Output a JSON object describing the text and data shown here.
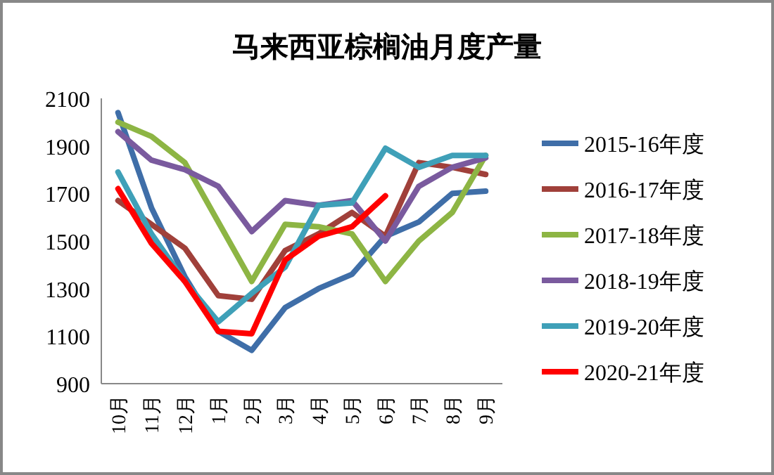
{
  "chart_data": {
    "type": "line",
    "title": "马来西亚棕榈油月度产量",
    "categories": [
      "10月",
      "11月",
      "12月",
      "1月",
      "2月",
      "3月",
      "4月",
      "5月",
      "6月",
      "7月",
      "8月",
      "9月"
    ],
    "ylim": [
      900,
      2100
    ],
    "yticks": [
      900,
      1100,
      1300,
      1500,
      1700,
      1900,
      2100
    ],
    "grid": false,
    "legend": "right",
    "marker": "none",
    "series": [
      {
        "name": "2015-16年度",
        "color": "#3f6ea8",
        "values": [
          2040,
          1640,
          1350,
          1120,
          1040,
          1220,
          1300,
          1360,
          1520,
          1580,
          1700,
          1710
        ]
      },
      {
        "name": "2016-17年度",
        "color": "#a0403a",
        "values": [
          1670,
          1570,
          1470,
          1270,
          1255,
          1460,
          1530,
          1620,
          1520,
          1830,
          1810,
          1780
        ]
      },
      {
        "name": "2017-18年度",
        "color": "#8db544",
        "values": [
          2000,
          1940,
          1830,
          1580,
          1330,
          1570,
          1560,
          1530,
          1330,
          1500,
          1620,
          1860
        ]
      },
      {
        "name": "2018-19年度",
        "color": "#7a5a9e",
        "values": [
          1960,
          1840,
          1800,
          1730,
          1540,
          1670,
          1650,
          1670,
          1500,
          1730,
          1810,
          1850
        ]
      },
      {
        "name": "2019-20年度",
        "color": "#3fa0b8",
        "values": [
          1790,
          1530,
          1330,
          1160,
          1280,
          1390,
          1650,
          1660,
          1890,
          1810,
          1860,
          1860
        ]
      },
      {
        "name": "2020-21年度",
        "color": "#ff0000",
        "values": [
          1720,
          1490,
          1330,
          1120,
          1110,
          1420,
          1520,
          1560,
          1690,
          null,
          null,
          null
        ]
      }
    ]
  }
}
